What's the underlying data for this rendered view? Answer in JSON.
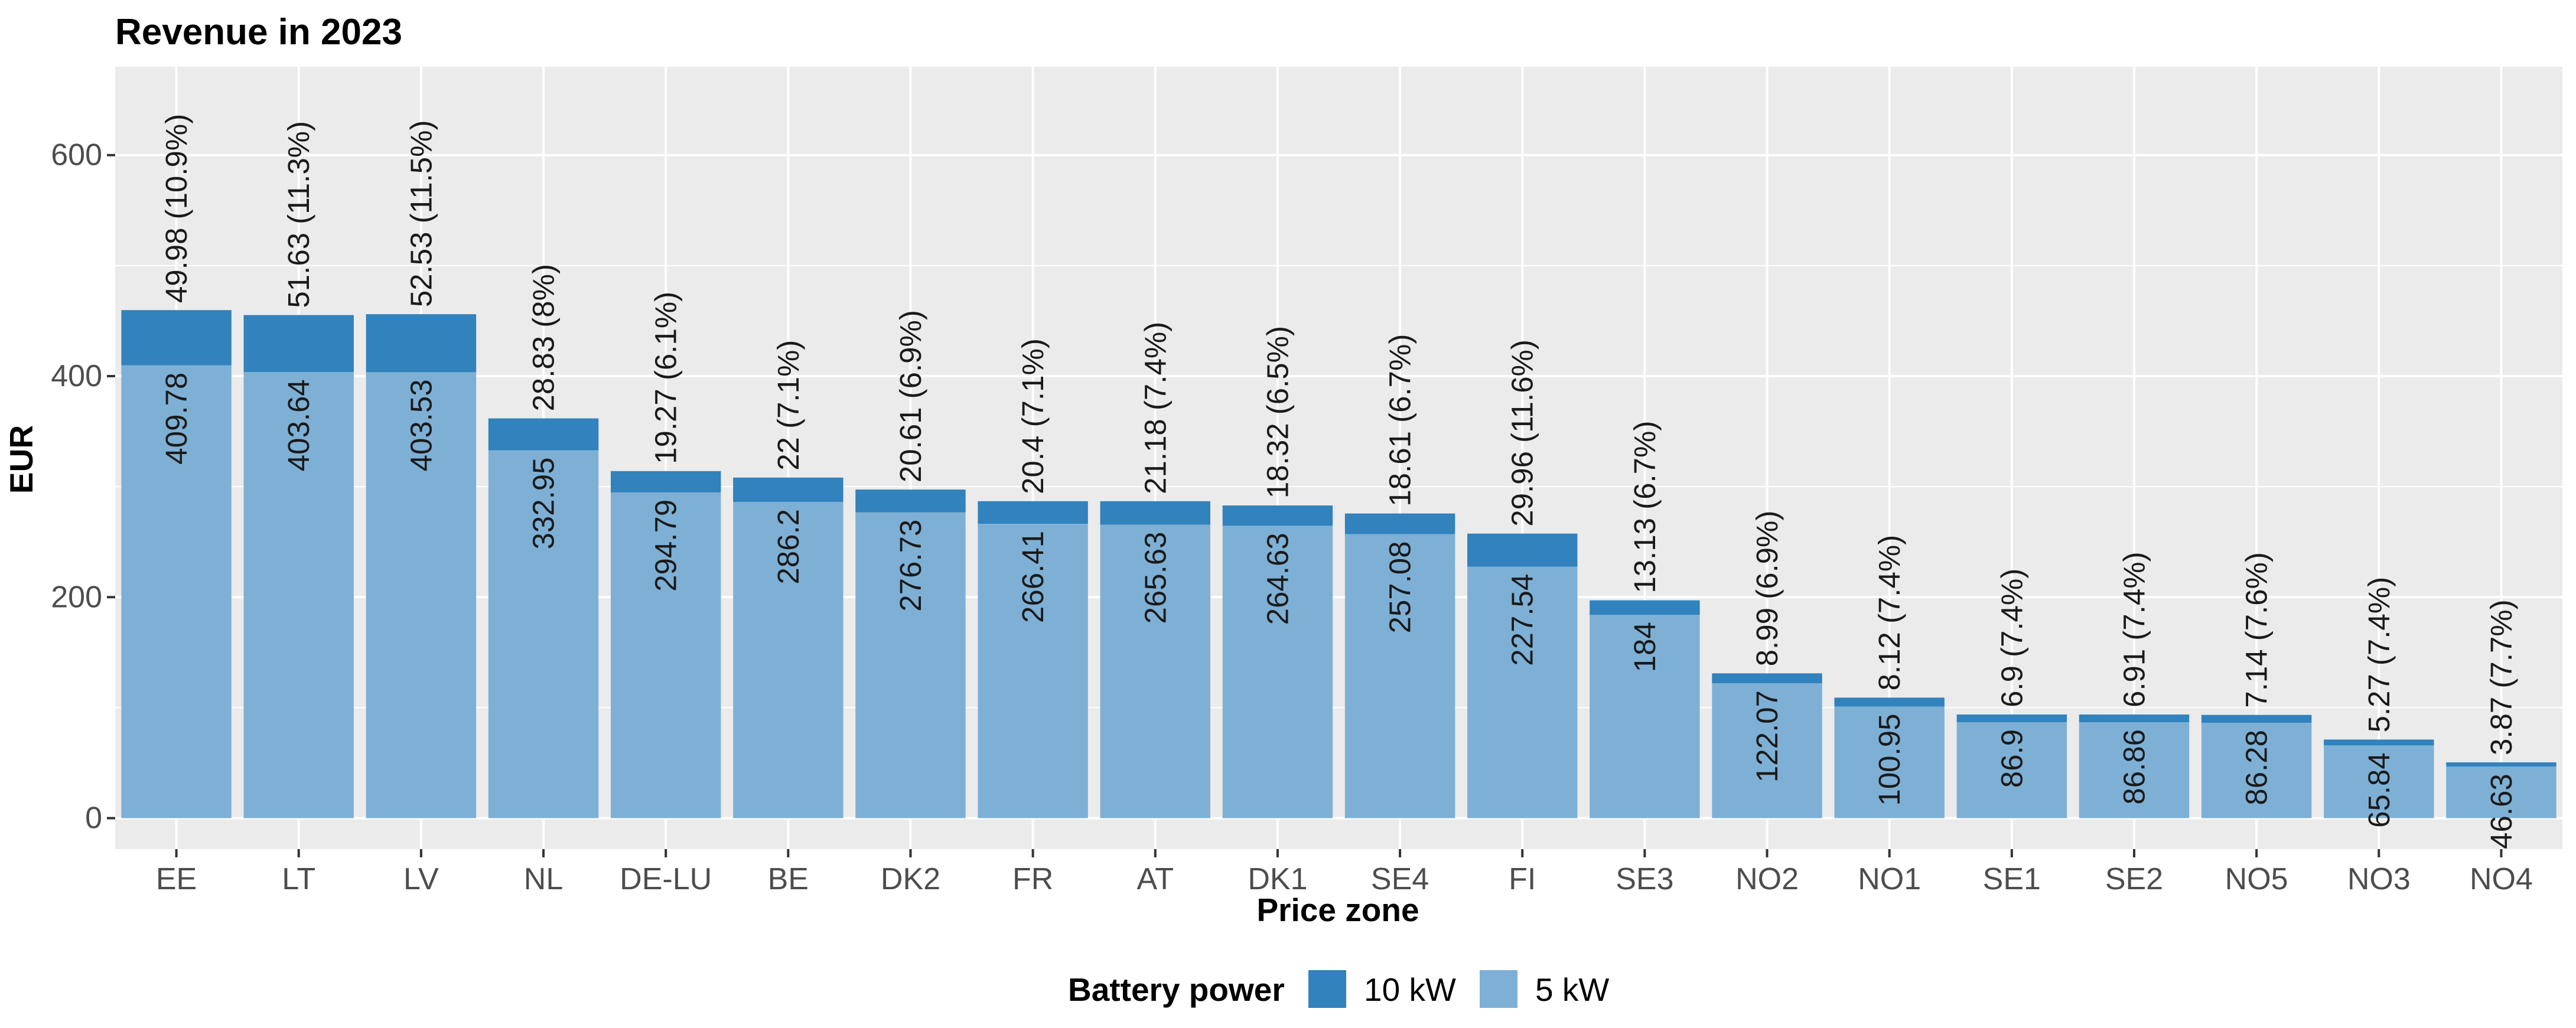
{
  "chart_data": {
    "type": "bar",
    "stacked": true,
    "title": "Revenue in 2023",
    "xlabel": "Price zone",
    "ylabel": "EUR",
    "ylim": [
      -28,
      680
    ],
    "yticks": [
      0,
      200,
      400,
      600
    ],
    "categories": [
      "EE",
      "LT",
      "LV",
      "NL",
      "DE-LU",
      "BE",
      "DK2",
      "FR",
      "AT",
      "DK1",
      "SE4",
      "FI",
      "SE3",
      "NO2",
      "NO1",
      "SE1",
      "SE2",
      "NO5",
      "NO3",
      "NO4"
    ],
    "series": [
      {
        "name": "5 kW",
        "color": "#7eb0d5",
        "values": [
          409.78,
          403.64,
          403.53,
          332.95,
          294.79,
          286.2,
          276.73,
          266.41,
          265.63,
          264.63,
          257.08,
          227.54,
          184,
          122.07,
          100.95,
          86.9,
          86.86,
          86.28,
          65.84,
          46.63
        ],
        "labels": [
          "409.78",
          "403.64",
          "403.53",
          "332.95",
          "294.79",
          "286.2",
          "276.73",
          "266.41",
          "265.63",
          "264.63",
          "257.08",
          "227.54",
          "184",
          "122.07",
          "100.95",
          "86.9",
          "86.86",
          "86.28",
          "65.84",
          "46.63"
        ]
      },
      {
        "name": "10 kW",
        "color": "#3182bd",
        "values": [
          49.98,
          51.63,
          52.53,
          28.83,
          19.27,
          22,
          20.61,
          20.4,
          21.18,
          18.32,
          18.61,
          29.96,
          13.13,
          8.99,
          8.12,
          6.9,
          6.91,
          7.14,
          5.27,
          3.87
        ],
        "labels": [
          "49.98 (10.9%)",
          "51.63 (11.3%)",
          "52.53 (11.5%)",
          "28.83 (8%)",
          "19.27 (6.1%)",
          "22 (7.1%)",
          "20.61 (6.9%)",
          "20.4 (7.1%)",
          "21.18 (7.4%)",
          "18.32 (6.5%)",
          "18.61 (6.7%)",
          "29.96 (11.6%)",
          "13.13 (6.7%)",
          "8.99 (6.9%)",
          "8.12 (7.4%)",
          "6.9 (7.4%)",
          "6.91 (7.4%)",
          "7.14 (7.6%)",
          "5.27 (7.4%)",
          "3.87 (7.7%)"
        ]
      }
    ],
    "legend": {
      "title": "Battery power",
      "position": "bottom",
      "entries": [
        {
          "label": "10 kW",
          "color": "#3182bd"
        },
        {
          "label": "5 kW",
          "color": "#7eb0d5"
        }
      ]
    },
    "panel_background": "#ebebeb",
    "grid": true
  }
}
